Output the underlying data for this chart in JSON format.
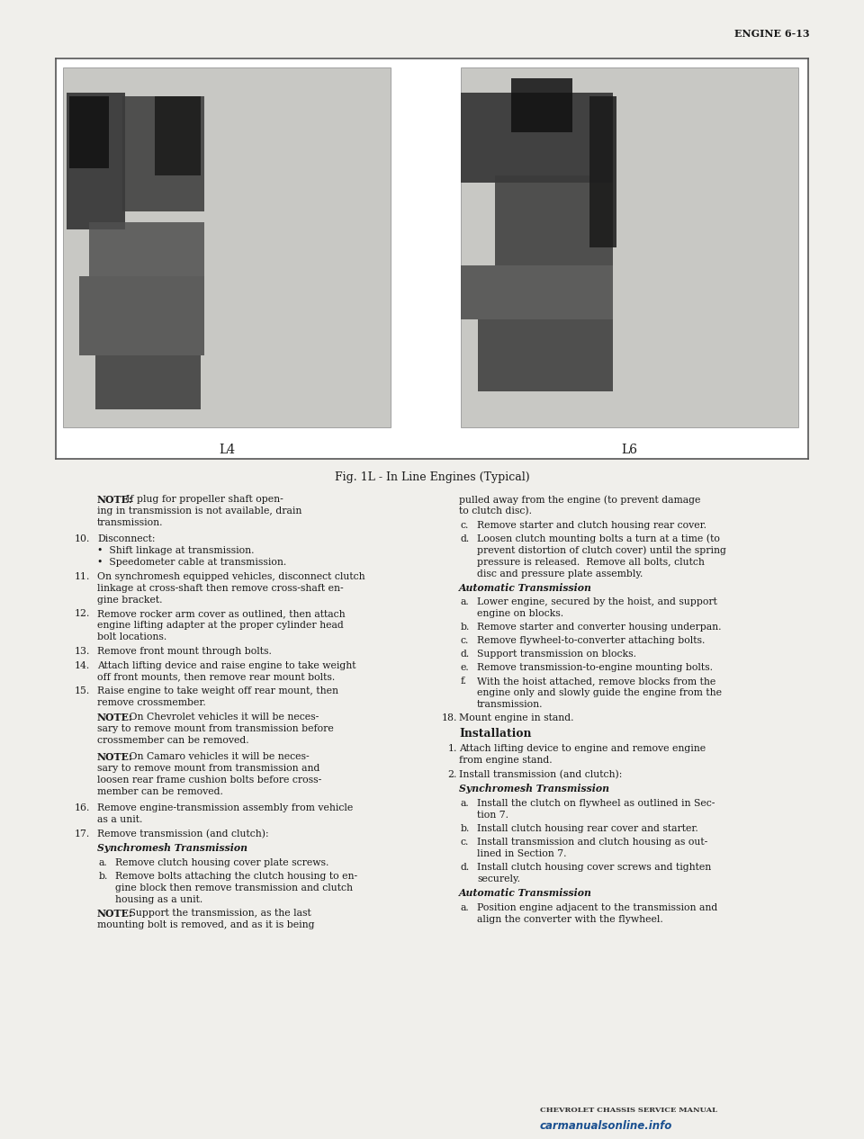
{
  "page_header": "ENGINE 6-13",
  "fig_caption": "Fig. 1L - In Line Engines (Typical)",
  "label_L4": "L4",
  "label_L6": "L6",
  "bg_color": "#f0efeb",
  "box_bg": "#ffffff",
  "text_color": "#1a1a1a",
  "left_column": [
    {
      "type": "note",
      "bold": "NOTE:",
      "rest": "  If plug for propeller shaft open-\ning in transmission is not available, drain\ntransmission."
    },
    {
      "type": "num",
      "num": "10.",
      "text": "Disconnect:\n•  Shift linkage at transmission.\n•  Speedometer cable at transmission."
    },
    {
      "type": "num",
      "num": "11.",
      "text": "On synchromesh equipped vehicles, disconnect clutch\nlinkage at cross-shaft then remove cross-shaft en-\ngine bracket."
    },
    {
      "type": "num",
      "num": "12.",
      "text": "Remove rocker arm cover as outlined, then attach\nengine lifting adapter at the proper cylinder head\nbolt locations."
    },
    {
      "type": "num",
      "num": "13.",
      "text": "Remove front mount through bolts."
    },
    {
      "type": "num",
      "num": "14.",
      "text": "Attach lifting device and raise engine to take weight\noff front mounts, then remove rear mount bolts."
    },
    {
      "type": "num",
      "num": "15.",
      "text": "Raise engine to take weight off rear mount, then\nremove crossmember."
    },
    {
      "type": "note",
      "bold": "NOTE:",
      "rest": "   On Chevrolet vehicles it will be neces-\nsary to remove mount from transmission before\ncrossmember can be removed."
    },
    {
      "type": "note",
      "bold": "NOTE:",
      "rest": "   On Camaro vehicles it will be neces-\nsary to remove mount from transmission and\nloosen rear frame cushion bolts before cross-\nmember can be removed."
    },
    {
      "type": "num",
      "num": "16.",
      "text": "Remove engine-transmission assembly from vehicle\nas a unit."
    },
    {
      "type": "num",
      "num": "17.",
      "text": "Remove transmission (and clutch):"
    },
    {
      "type": "italic",
      "text": "Synchromesh Transmission"
    },
    {
      "type": "sub",
      "sub": "a.",
      "text": "Remove clutch housing cover plate screws."
    },
    {
      "type": "sub",
      "sub": "b.",
      "text": "Remove bolts attaching the clutch housing to en-\ngine block then remove transmission and clutch\nhousing as a unit."
    },
    {
      "type": "note",
      "bold": "NOTE:",
      "rest": "   Support the transmission, as the last\nmounting bolt is removed, and as it is being"
    }
  ],
  "right_column": [
    {
      "type": "plain",
      "text": "pulled away from the engine (to prevent damage\nto clutch disc)."
    },
    {
      "type": "sub",
      "sub": "c.",
      "text": "Remove starter and clutch housing rear cover."
    },
    {
      "type": "sub",
      "sub": "d.",
      "text": "Loosen clutch mounting bolts a turn at a time (to\nprevent distortion of clutch cover) until the spring\npressure is released.  Remove all bolts, clutch\ndisc and pressure plate assembly."
    },
    {
      "type": "italic",
      "text": "Automatic Transmission"
    },
    {
      "type": "sub",
      "sub": "a.",
      "text": "Lower engine, secured by the hoist, and support\nengine on blocks."
    },
    {
      "type": "sub",
      "sub": "b.",
      "text": "Remove starter and converter housing underpan."
    },
    {
      "type": "sub",
      "sub": "c.",
      "text": "Remove flywheel-to-converter attaching bolts."
    },
    {
      "type": "sub",
      "sub": "d.",
      "text": "Support transmission on blocks."
    },
    {
      "type": "sub",
      "sub": "e.",
      "text": "Remove transmission-to-engine mounting bolts."
    },
    {
      "type": "sub",
      "sub": "f.",
      "text": "With the hoist attached, remove blocks from the\nengine only and slowly guide the engine from the\ntransmission."
    },
    {
      "type": "num",
      "num": "18.",
      "text": "Mount engine in stand."
    },
    {
      "type": "section",
      "text": "Installation"
    },
    {
      "type": "num",
      "num": "1.",
      "text": "Attach lifting device to engine and remove engine\nfrom engine stand."
    },
    {
      "type": "num",
      "num": "2.",
      "text": "Install transmission (and clutch):"
    },
    {
      "type": "italic",
      "text": "Synchromesh Transmission"
    },
    {
      "type": "sub",
      "sub": "a.",
      "text": "Install the clutch on flywheel as outlined in Sec-\ntion 7."
    },
    {
      "type": "sub",
      "sub": "b.",
      "text": "Install clutch housing rear cover and starter."
    },
    {
      "type": "sub",
      "sub": "c.",
      "text": "Install transmission and clutch housing as out-\nlined in Section 7."
    },
    {
      "type": "sub",
      "sub": "d.",
      "text": "Install clutch housing cover screws and tighten\nsecurely."
    },
    {
      "type": "italic",
      "text": "Automatic Transmission"
    },
    {
      "type": "sub",
      "sub": "a.",
      "text": "Position engine adjacent to the transmission and\nalign the converter with the flywheel."
    }
  ],
  "footer_left": "CHEVROLET CHASSIS SERVICE MANUAL",
  "watermark": "carmanualsonline.info"
}
